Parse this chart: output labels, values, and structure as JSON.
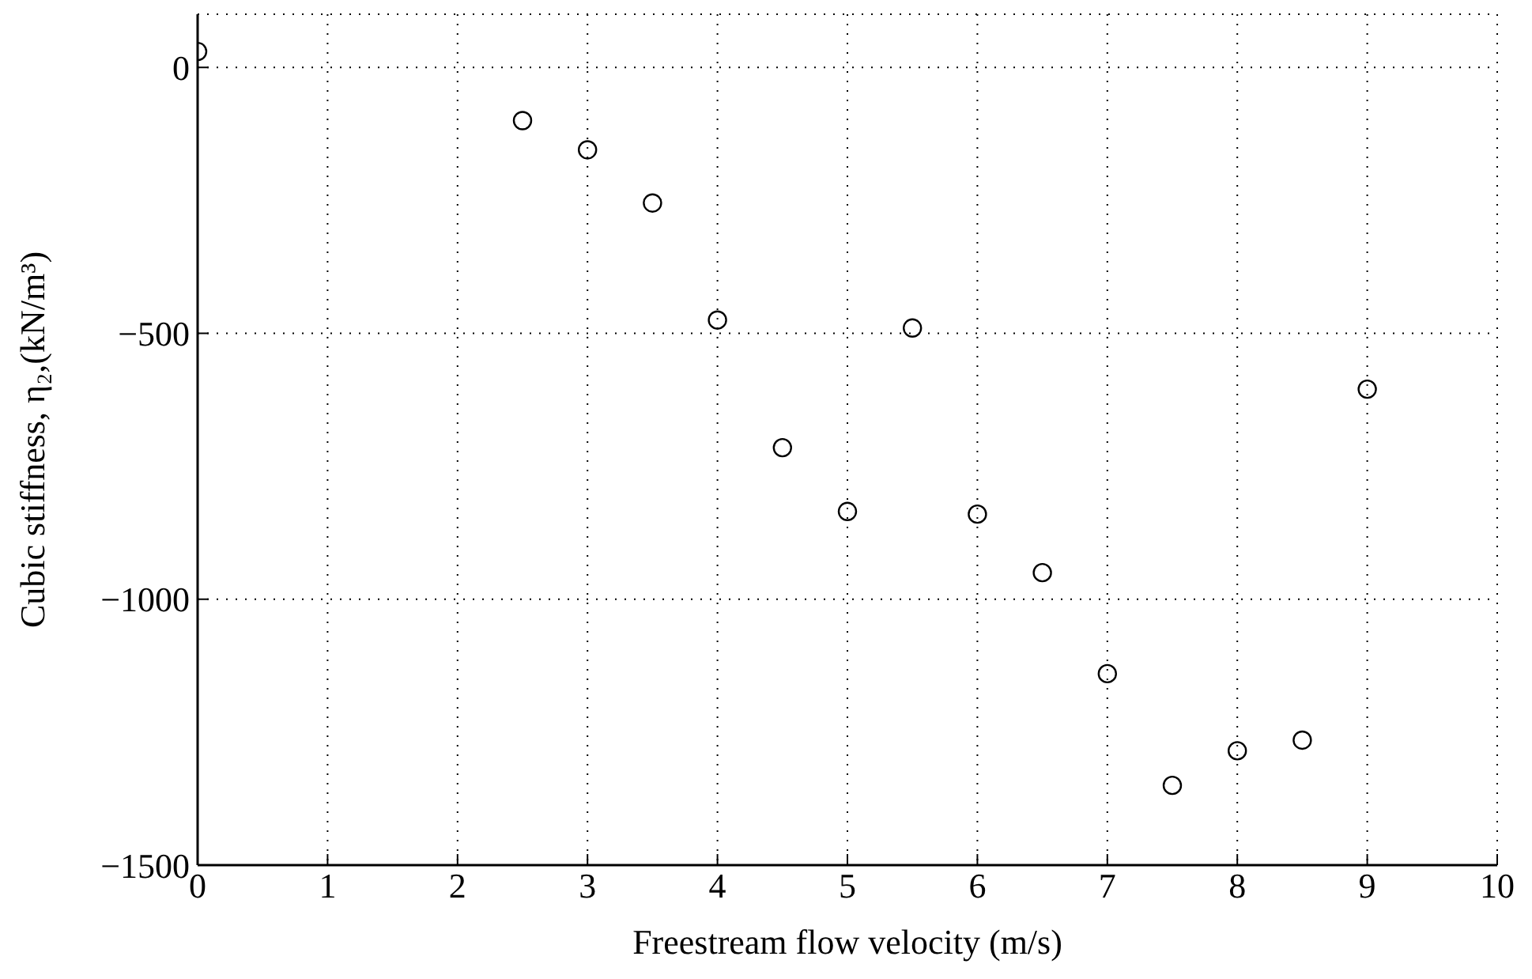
{
  "chart_data": {
    "type": "scatter",
    "xlabel": "Freestream flow velocity (m/s)",
    "ylabel": "Cubic stiffness,  η₂,(kN/m³)",
    "x": [
      0,
      2.5,
      3,
      3.5,
      4,
      4.5,
      5,
      5.5,
      6,
      6.5,
      7,
      7.5,
      8,
      8.5,
      9
    ],
    "series": [
      {
        "color": "#000000",
        "values": [
          30,
          -100,
          -155,
          -255,
          -475,
          -715,
          -835,
          -490,
          -840,
          -950,
          -1140,
          -1350,
          -1285,
          -1265,
          -605
        ]
      }
    ],
    "xlim": [
      0,
      10
    ],
    "xticks": [
      0,
      1,
      2,
      3,
      4,
      5,
      6,
      7,
      8,
      9,
      10
    ],
    "ylim": [
      -1500,
      100
    ],
    "yticks": [
      -1500,
      -1000,
      -500,
      0
    ],
    "grid": true,
    "marker": "circle",
    "line_style": "dotted"
  }
}
